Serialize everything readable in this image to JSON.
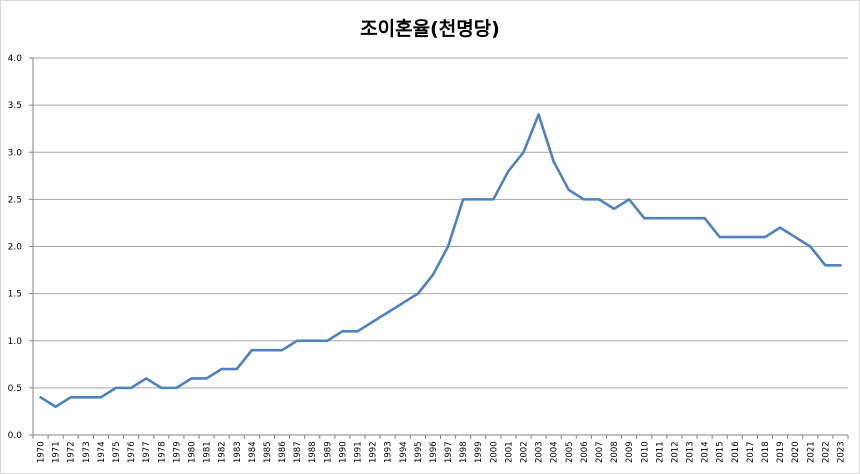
{
  "chart_data": {
    "type": "line",
    "title": "조이혼율(천명당)",
    "xlabel": "",
    "ylabel": "",
    "ylim": [
      0,
      4
    ],
    "yticks": [
      "0.0",
      "0.5",
      "1.0",
      "1.5",
      "2.0",
      "2.5",
      "3.0",
      "3.5",
      "4.0"
    ],
    "grid": true,
    "legend": "none",
    "categories": [
      "1970",
      "1971",
      "1972",
      "1973",
      "1974",
      "1975",
      "1976",
      "1977",
      "1978",
      "1979",
      "1980",
      "1981",
      "1982",
      "1983",
      "1984",
      "1985",
      "1986",
      "1987",
      "1988",
      "1989",
      "1990",
      "1991",
      "1992",
      "1993",
      "1994",
      "1995",
      "1996",
      "1997",
      "1998",
      "1999",
      "2000",
      "2001",
      "2002",
      "2003",
      "2004",
      "2005",
      "2006",
      "2007",
      "2008",
      "2009",
      "2010",
      "2011",
      "2012",
      "2013",
      "2014",
      "2015",
      "2016",
      "2017",
      "2018",
      "2019",
      "2020",
      "2021",
      "2022",
      "2023"
    ],
    "series": [
      {
        "values": [
          0.4,
          0.3,
          0.4,
          0.4,
          0.4,
          0.5,
          0.5,
          0.6,
          0.5,
          0.5,
          0.6,
          0.6,
          0.7,
          0.7,
          0.9,
          0.9,
          0.9,
          1.0,
          1.0,
          1.0,
          1.1,
          1.1,
          1.2,
          1.3,
          1.4,
          1.5,
          1.7,
          2.0,
          2.5,
          2.5,
          2.5,
          2.8,
          3.0,
          3.4,
          2.9,
          2.6,
          2.5,
          2.5,
          2.4,
          2.5,
          2.3,
          2.3,
          2.3,
          2.3,
          2.3,
          2.1,
          2.1,
          2.1,
          2.1,
          2.2,
          2.1,
          2.0,
          1.8,
          1.8
        ]
      }
    ],
    "colors": {
      "line": "#4f81bd",
      "grid": "#a6a6a6",
      "axis": "#868686"
    }
  }
}
